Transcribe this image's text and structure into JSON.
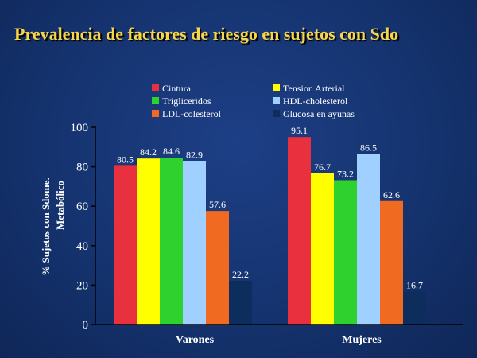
{
  "title": "Prevalencia de factores de riesgo en sujetos con Sdo",
  "chart_data": {
    "type": "bar",
    "categories": [
      "Varones",
      "Mujeres"
    ],
    "series": [
      {
        "name": "Cintura",
        "color": "#e8303f",
        "values": [
          80.5,
          95.1
        ]
      },
      {
        "name": "Tension Arterial",
        "color": "#ffff00",
        "values": [
          84.2,
          76.7
        ]
      },
      {
        "name": "Trigliceridos",
        "color": "#2ed12e",
        "values": [
          84.6,
          73.2
        ]
      },
      {
        "name": "HDL-cholesterol",
        "color": "#9fd0ff",
        "values": [
          82.9,
          86.5
        ]
      },
      {
        "name": "LDL-colesterol",
        "color": "#f06a22",
        "values": [
          57.6,
          62.6
        ]
      },
      {
        "name": "Glucosa  en ayunas",
        "color": "#0d2d5c",
        "values": [
          22.2,
          16.7
        ]
      }
    ],
    "ylabel_line1": "%   Sujetos con Sdome.",
    "ylabel_line2": "Metabólico",
    "ylim": [
      0,
      100
    ],
    "yticks": [
      "0",
      "20",
      "40",
      "60",
      "80",
      "100"
    ],
    "legend_position": "top"
  }
}
